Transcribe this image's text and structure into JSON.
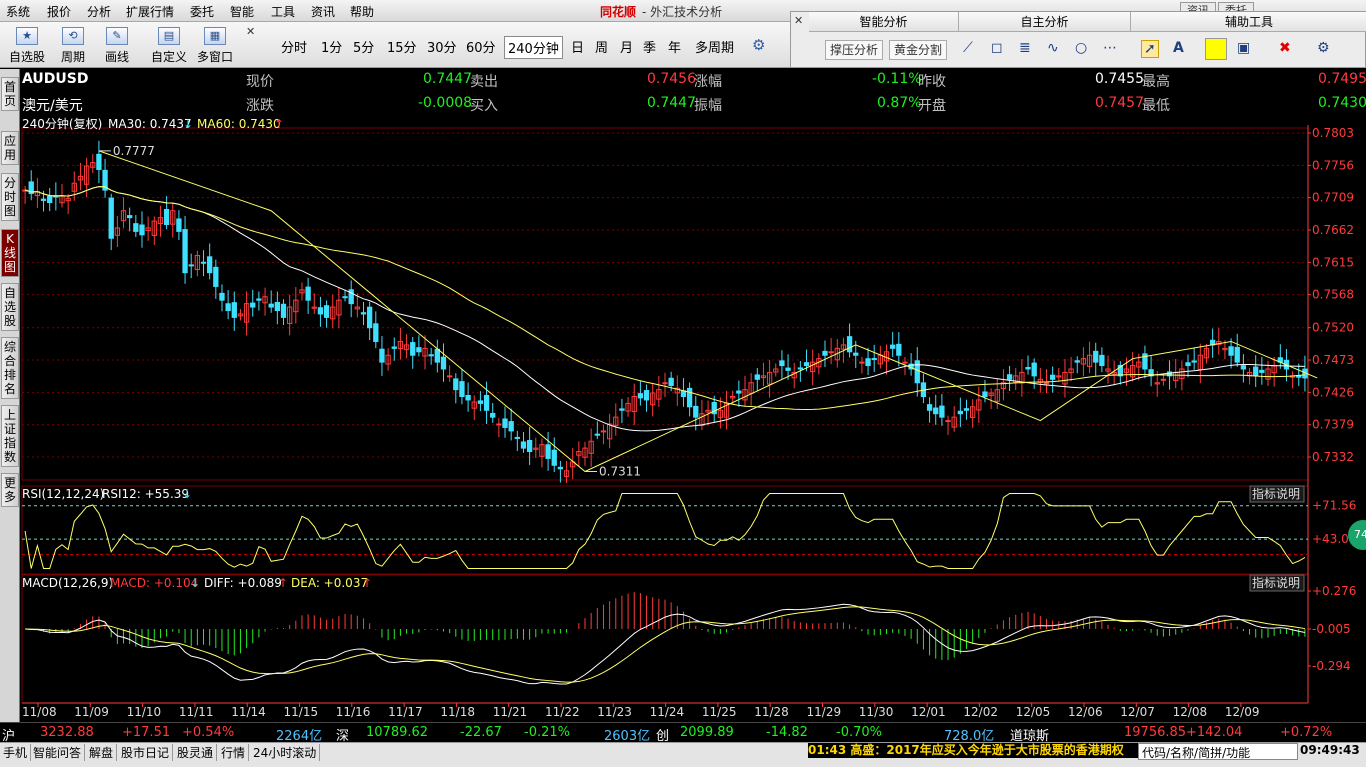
{
  "menu": [
    "系统",
    "报价",
    "分析",
    "扩展行情",
    "委托",
    "智能",
    "工具",
    "资讯",
    "帮助"
  ],
  "app": {
    "brand": "同花顺",
    "title": "- 外汇技术分析"
  },
  "window_controls": [
    "资讯",
    "委托"
  ],
  "toolbar": {
    "buttons": [
      {
        "label": "自选股",
        "icon": "star-icon"
      },
      {
        "label": "周期",
        "icon": "cycle-icon"
      },
      {
        "label": "画线",
        "icon": "pen-icon"
      },
      {
        "label": "自定义",
        "icon": "layout-icon"
      },
      {
        "label": "多窗口",
        "icon": "multi-window-icon"
      }
    ],
    "periods": [
      "分时",
      "1分",
      "5分",
      "15分",
      "30分",
      "60分",
      "240分钟",
      "日",
      "周",
      "月",
      "季",
      "年",
      "多周期"
    ],
    "active_period": "240分钟"
  },
  "analysis_panel": {
    "headers": [
      "智能分析",
      "自主分析",
      "辅助工具"
    ],
    "buttons": [
      "撑压分析",
      "黄金分割"
    ],
    "tool_font": "A"
  },
  "sidebar": [
    "首页",
    "应用",
    "分时图",
    "K线图",
    "自选股",
    "综合排名",
    "上证指数",
    "更多"
  ],
  "sidebar_active": "K线图",
  "quote": {
    "symbol": "AUDUSD",
    "name": "澳元/美元",
    "fields": [
      {
        "label": "现价",
        "value": "0.7447",
        "color": "g"
      },
      {
        "label": "卖出",
        "value": "0.7456",
        "color": "r"
      },
      {
        "label": "涨幅",
        "value": "-0.11%",
        "color": "g"
      },
      {
        "label": "昨收",
        "value": "0.7455",
        "color": "w"
      },
      {
        "label": "最高",
        "value": "0.7495",
        "color": "r"
      },
      {
        "label": "涨跌",
        "value": "-0.0008",
        "color": "g"
      },
      {
        "label": "买入",
        "value": "0.7447",
        "color": "g"
      },
      {
        "label": "振幅",
        "value": "0.87%",
        "color": "g"
      },
      {
        "label": "开盘",
        "value": "0.7457",
        "color": "r"
      },
      {
        "label": "最低",
        "value": "0.7430",
        "color": "g"
      }
    ]
  },
  "chart_data": {
    "type": "candlestick",
    "period_label": "240分钟(复权)",
    "ma_labels": [
      {
        "text": "MA30: 0.7437",
        "arrow": "↓",
        "color": "#ffffff"
      },
      {
        "text": "MA60: 0.7430",
        "arrow": "↑",
        "color": "#ffff66"
      }
    ],
    "y_ticks": [
      "0.7803",
      "0.7756",
      "0.7709",
      "0.7662",
      "0.7615",
      "0.7568",
      "0.7520",
      "0.7473",
      "0.7426",
      "0.7379",
      "0.7332"
    ],
    "ylim": [
      0.7303,
      0.7803
    ],
    "x_labels": [
      "11/08",
      "11/09",
      "11/10",
      "11/11",
      "11/14",
      "11/15",
      "11/16",
      "11/17",
      "11/18",
      "11/21",
      "11/22",
      "11/23",
      "11/24",
      "11/25",
      "11/28",
      "11/29",
      "11/30",
      "12/01",
      "12/02",
      "12/05",
      "12/06",
      "12/07",
      "12/08",
      "12/09"
    ],
    "annotations": [
      {
        "text": "0.7777",
        "value": 0.7777,
        "index": 12
      },
      {
        "text": "0.7311",
        "value": 0.7311,
        "index": 91
      }
    ],
    "close": [
      0.772,
      0.7715,
      0.7718,
      0.7705,
      0.7702,
      0.771,
      0.7712,
      0.7708,
      0.773,
      0.774,
      0.7755,
      0.776,
      0.775,
      0.772,
      0.765,
      0.7665,
      0.769,
      0.768,
      0.766,
      0.7655,
      0.7665,
      0.7675,
      0.768,
      0.767,
      0.769,
      0.766,
      0.76,
      0.761,
      0.7625,
      0.7615,
      0.76,
      0.758,
      0.756,
      0.7545,
      0.7535,
      0.754,
      0.7555,
      0.755,
      0.756,
      0.7565,
      0.755,
      0.7545,
      0.7535,
      0.755,
      0.756,
      0.7575,
      0.756,
      0.755,
      0.754,
      0.7535,
      0.755,
      0.756,
      0.7565,
      0.7555,
      0.755,
      0.754,
      0.752,
      0.75,
      0.747,
      0.748,
      0.749,
      0.75,
      0.7495,
      0.748,
      0.7485,
      0.749,
      0.748,
      0.747,
      0.746,
      0.745,
      0.743,
      0.742,
      0.7415,
      0.7412,
      0.741,
      0.74,
      0.739,
      0.738,
      0.7375,
      0.737,
      0.736,
      0.7345,
      0.734,
      0.7345,
      0.735,
      0.733,
      0.732,
      0.7315,
      0.7312,
      0.7325,
      0.734,
      0.7345,
      0.7355,
      0.7365,
      0.737,
      0.738,
      0.739,
      0.74,
      0.741,
      0.742,
      0.7418,
      0.7415,
      0.7425,
      0.743,
      0.744,
      0.7436,
      0.7432,
      0.742,
      0.7405,
      0.739,
      0.7395,
      0.74,
      0.7395,
      0.74,
      0.741,
      0.742,
      0.7425,
      0.743,
      0.744,
      0.7445,
      0.745,
      0.7455,
      0.746,
      0.7465,
      0.7458,
      0.7455,
      0.746,
      0.7465,
      0.747,
      0.7475,
      0.748,
      0.7485,
      0.749,
      0.7495,
      0.7485,
      0.748,
      0.747,
      0.7465,
      0.7475,
      0.748,
      0.7485,
      0.749,
      0.748,
      0.747,
      0.746,
      0.744,
      0.742,
      0.74,
      0.7395,
      0.739,
      0.7385,
      0.739,
      0.7395,
      0.74,
      0.7405,
      0.7415,
      0.742,
      0.7425,
      0.743,
      0.744,
      0.7445,
      0.745,
      0.7455,
      0.746,
      0.745,
      0.7445,
      0.744,
      0.7445,
      0.745,
      0.7455,
      0.746,
      0.747,
      0.7475,
      0.748,
      0.747,
      0.7465,
      0.746,
      0.7455,
      0.745,
      0.746,
      0.7465,
      0.747,
      0.746,
      0.745,
      0.744,
      0.7445,
      0.745,
      0.7455,
      0.746,
      0.7465,
      0.747,
      0.748,
      0.749,
      0.7495,
      0.75,
      0.749,
      0.748,
      0.747,
      0.746,
      0.7455,
      0.745,
      0.7455,
      0.746,
      0.7465,
      0.747,
      0.746,
      0.745,
      0.7448,
      0.7447
    ],
    "rsi": {
      "label": "RSI(12,12,24)",
      "value_label": "RSI12: +55.39",
      "arrow": "↓",
      "explain": "指标说明",
      "ticks": [
        "+71.56",
        "+43.08"
      ]
    },
    "macd": {
      "label": "MACD(12,26,9)",
      "macd": "MACD: +0.104",
      "macd_arrow": "↓",
      "diff": "DIFF: +0.089",
      "diff_arrow": "↑",
      "dea": "DEA: +0.037",
      "dea_arrow": "↑",
      "explain": "指标说明",
      "ticks": [
        "+0.276",
        "-0.005",
        "-0.294"
      ]
    }
  },
  "status_bar": {
    "items": [
      {
        "t": "沪",
        "c": "#ffffff"
      },
      {
        "t": "3232.88",
        "c": "#ff3b3b"
      },
      {
        "t": "+17.51",
        "c": "#ff3b3b"
      },
      {
        "t": "+0.54%",
        "c": "#ff3b3b"
      },
      {
        "t": "2264亿",
        "c": "#4fc3ff"
      },
      {
        "t": "深",
        "c": "#ffffff"
      },
      {
        "t": "10789.62",
        "c": "#22ee22"
      },
      {
        "t": "-22.67",
        "c": "#22ee22"
      },
      {
        "t": "-0.21%",
        "c": "#22ee22"
      },
      {
        "t": "2603亿",
        "c": "#4fc3ff"
      },
      {
        "t": "创",
        "c": "#ffffff"
      },
      {
        "t": "2099.89",
        "c": "#22ee22"
      },
      {
        "t": "-14.82",
        "c": "#22ee22"
      },
      {
        "t": "-0.70%",
        "c": "#22ee22"
      },
      {
        "t": "728.0亿",
        "c": "#4fc3ff"
      },
      {
        "t": "道琼斯",
        "c": "#ffffff"
      },
      {
        "t": "19756.85",
        "c": "#ff3b3b"
      },
      {
        "t": "+142.04",
        "c": "#ff3b3b"
      },
      {
        "t": "+0.72%",
        "c": "#ff3b3b"
      }
    ]
  },
  "bottom_bar": {
    "tabs": [
      "手机",
      "智能问答",
      "解盘",
      "股市日记",
      "股灵通",
      "行情",
      "24小时滚动"
    ],
    "ticker": "01:43 高盛：2017年应买入今年逊于大市股票的香港期权",
    "code_placeholder": "代码/名称/简拼/功能",
    "clock": "09:49:43",
    "bubble": "74"
  },
  "colors": {
    "up": "#ff3b3b",
    "down": "#3fe0ff",
    "ma30": "#ffffff",
    "ma60": "#ffff66",
    "grid": "#7a0000"
  }
}
